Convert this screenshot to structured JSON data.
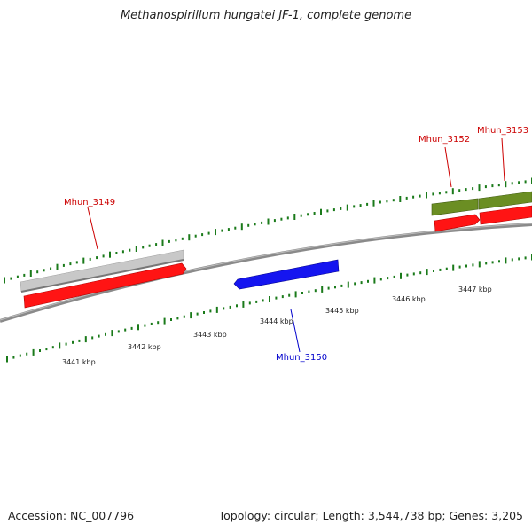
{
  "title": "Methanospirillum hungatei JF-1, complete genome",
  "footer": {
    "accession": "Accession: NC_007796",
    "summary": "Topology: circular; Length: 3,544,738 bp; Genes: 3,205"
  },
  "colors": {
    "backbone": "#888888",
    "tick": "#1a7a1a",
    "forward_cds": "#ff1010",
    "reverse_cds": "#1010ee",
    "gene_gray": "#c8c8c8",
    "gene_green": "#6b8e23",
    "label_forward": "#cc0000",
    "label_reverse": "#0000cc"
  },
  "ticks": [
    {
      "label": "3441 kbp"
    },
    {
      "label": "3442 kbp"
    },
    {
      "label": "3443 kbp"
    },
    {
      "label": "3444 kbp"
    },
    {
      "label": "3445 kbp"
    },
    {
      "label": "3446 kbp"
    },
    {
      "label": "3447 kbp"
    }
  ],
  "genes": [
    {
      "name": "Mhun_3149",
      "strand": "forward"
    },
    {
      "name": "Mhun_3150",
      "strand": "reverse"
    },
    {
      "name": "Mhun_3152",
      "strand": "forward"
    },
    {
      "name": "Mhun_3153",
      "strand": "forward"
    }
  ]
}
